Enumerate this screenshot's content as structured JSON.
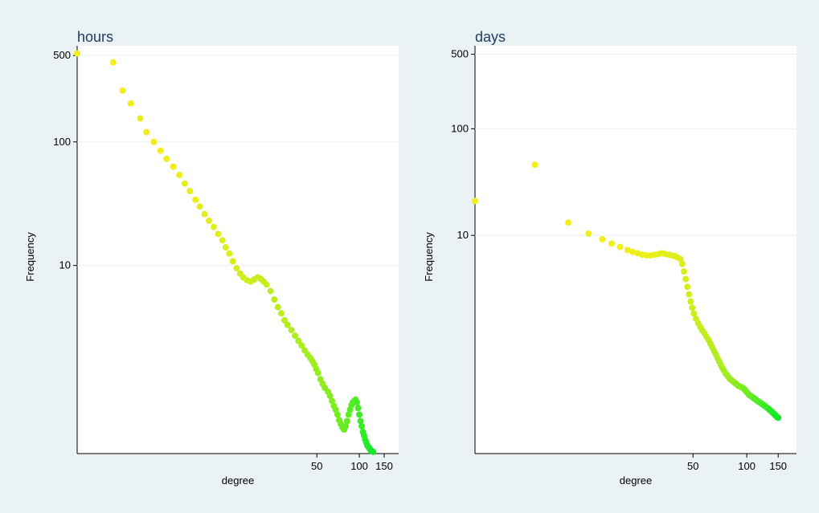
{
  "chart_data": [
    {
      "type": "scatter",
      "title": "hours",
      "xlabel": "degree",
      "ylabel": "Frequency",
      "x_scale": "log",
      "y_scale": "log",
      "xlim": [
        1,
        190
      ],
      "ylim": [
        0.3,
        600
      ],
      "x_ticks": [
        50,
        100,
        150
      ],
      "y_ticks": [
        10,
        100,
        500
      ],
      "grid": "horizontal",
      "points": [
        [
          1,
          520
        ],
        [
          1.8,
          440
        ],
        [
          2.1,
          260
        ],
        [
          2.4,
          205
        ],
        [
          2.8,
          155
        ],
        [
          3.1,
          120
        ],
        [
          3.5,
          100
        ],
        [
          3.9,
          85
        ],
        [
          4.3,
          73
        ],
        [
          4.8,
          63
        ],
        [
          5.3,
          54
        ],
        [
          5.8,
          46
        ],
        [
          6.3,
          40
        ],
        [
          6.9,
          34
        ],
        [
          7.4,
          30
        ],
        [
          8,
          26
        ],
        [
          8.6,
          23
        ],
        [
          9.3,
          20.5
        ],
        [
          10,
          18
        ],
        [
          10.7,
          16
        ],
        [
          11.3,
          14
        ],
        [
          12,
          12.5
        ],
        [
          12.7,
          10.8
        ],
        [
          13.5,
          9.5
        ],
        [
          14.3,
          8.6
        ],
        [
          15,
          8
        ],
        [
          16,
          7.6
        ],
        [
          17,
          7.4
        ],
        [
          18,
          7.7
        ],
        [
          19,
          8
        ],
        [
          20,
          7.8
        ],
        [
          21,
          7.4
        ],
        [
          22,
          7
        ],
        [
          23.5,
          6.2
        ],
        [
          25,
          5.3
        ],
        [
          26.5,
          4.6
        ],
        [
          28,
          4.1
        ],
        [
          29.5,
          3.6
        ],
        [
          31,
          3.3
        ],
        [
          33,
          3
        ],
        [
          35,
          2.7
        ],
        [
          37,
          2.45
        ],
        [
          39,
          2.25
        ],
        [
          41,
          2.05
        ],
        [
          43,
          1.9
        ],
        [
          45,
          1.78
        ],
        [
          46.5,
          1.68
        ],
        [
          48,
          1.58
        ],
        [
          49.5,
          1.45
        ],
        [
          51,
          1.35
        ],
        [
          53,
          1.2
        ],
        [
          55,
          1.1
        ],
        [
          57,
          1.02
        ],
        [
          60,
          0.95
        ],
        [
          62,
          0.88
        ],
        [
          64,
          0.8
        ],
        [
          66,
          0.73
        ],
        [
          68,
          0.68
        ],
        [
          70,
          0.62
        ],
        [
          72,
          0.56
        ],
        [
          74,
          0.52
        ],
        [
          76,
          0.49
        ],
        [
          78,
          0.47
        ],
        [
          80,
          0.5
        ],
        [
          82,
          0.55
        ],
        [
          84,
          0.62
        ],
        [
          86,
          0.68
        ],
        [
          88,
          0.74
        ],
        [
          90,
          0.78
        ],
        [
          92,
          0.8
        ],
        [
          94,
          0.82
        ],
        [
          96,
          0.78
        ],
        [
          98,
          0.7
        ],
        [
          100,
          0.62
        ],
        [
          102,
          0.55
        ],
        [
          104,
          0.5
        ],
        [
          106,
          0.45
        ],
        [
          108,
          0.42
        ],
        [
          110,
          0.39
        ],
        [
          112,
          0.37
        ],
        [
          114,
          0.35
        ],
        [
          116,
          0.34
        ],
        [
          118,
          0.33
        ],
        [
          120,
          0.32
        ],
        [
          122,
          0.315
        ],
        [
          125,
          0.31
        ]
      ]
    },
    {
      "type": "scatter",
      "title": "days",
      "xlabel": "degree",
      "ylabel": "Frequency",
      "x_scale": "log",
      "y_scale": "log",
      "xlim": [
        3,
        190
      ],
      "ylim": [
        0.09,
        600
      ],
      "x_ticks": [
        50,
        100,
        150
      ],
      "y_ticks": [
        10,
        100,
        500
      ],
      "grid": "horizontal",
      "points": [
        [
          3,
          21
        ],
        [
          6.5,
          46
        ],
        [
          10,
          13.2
        ],
        [
          13,
          10.4
        ],
        [
          15.5,
          9.2
        ],
        [
          17.5,
          8.4
        ],
        [
          19.5,
          7.8
        ],
        [
          21.5,
          7.3
        ],
        [
          23,
          7
        ],
        [
          24.5,
          6.8
        ],
        [
          26,
          6.6
        ],
        [
          27.5,
          6.5
        ],
        [
          29,
          6.5
        ],
        [
          30.5,
          6.6
        ],
        [
          32,
          6.7
        ],
        [
          33.5,
          6.8
        ],
        [
          35,
          6.7
        ],
        [
          36.5,
          6.6
        ],
        [
          38,
          6.5
        ],
        [
          39.5,
          6.4
        ],
        [
          41,
          6.2
        ],
        [
          42.5,
          6
        ],
        [
          43.5,
          5.4
        ],
        [
          44.5,
          4.6
        ],
        [
          45.5,
          3.9
        ],
        [
          46.5,
          3.3
        ],
        [
          47.5,
          2.8
        ],
        [
          48.5,
          2.4
        ],
        [
          49.5,
          2.1
        ],
        [
          50.5,
          1.85
        ],
        [
          52,
          1.65
        ],
        [
          53.5,
          1.5
        ],
        [
          55,
          1.38
        ],
        [
          56.5,
          1.28
        ],
        [
          58,
          1.2
        ],
        [
          59.5,
          1.12
        ],
        [
          61,
          1.05
        ],
        [
          62.5,
          0.97
        ],
        [
          64,
          0.9
        ],
        [
          65.5,
          0.83
        ],
        [
          67,
          0.77
        ],
        [
          68.5,
          0.71
        ],
        [
          70,
          0.66
        ],
        [
          71.5,
          0.61
        ],
        [
          73,
          0.57
        ],
        [
          74.5,
          0.54
        ],
        [
          76,
          0.51
        ],
        [
          77.5,
          0.49
        ],
        [
          79,
          0.47
        ],
        [
          80.5,
          0.45
        ],
        [
          82,
          0.44
        ],
        [
          83.5,
          0.43
        ],
        [
          85,
          0.42
        ],
        [
          86.5,
          0.41
        ],
        [
          88,
          0.4
        ],
        [
          89.5,
          0.39
        ],
        [
          91,
          0.385
        ],
        [
          92.5,
          0.38
        ],
        [
          94,
          0.375
        ],
        [
          95.5,
          0.37
        ],
        [
          97,
          0.36
        ],
        [
          98.5,
          0.35
        ],
        [
          100,
          0.34
        ],
        [
          101.5,
          0.33
        ],
        [
          103,
          0.32
        ],
        [
          104.5,
          0.315
        ],
        [
          106,
          0.31
        ],
        [
          107.5,
          0.305
        ],
        [
          109,
          0.3
        ],
        [
          110.5,
          0.295
        ],
        [
          112,
          0.29
        ],
        [
          113.5,
          0.285
        ],
        [
          115,
          0.28
        ],
        [
          117,
          0.275
        ],
        [
          119,
          0.27
        ],
        [
          121,
          0.265
        ],
        [
          123,
          0.26
        ],
        [
          125,
          0.255
        ],
        [
          127,
          0.25
        ],
        [
          129,
          0.245
        ],
        [
          131,
          0.24
        ],
        [
          133,
          0.235
        ],
        [
          135,
          0.23
        ],
        [
          137,
          0.225
        ],
        [
          139,
          0.22
        ],
        [
          141,
          0.215
        ],
        [
          143,
          0.21
        ],
        [
          145,
          0.205
        ],
        [
          147,
          0.2
        ],
        [
          150,
          0.195
        ]
      ]
    }
  ],
  "colors": {
    "background": "#eaf2f3",
    "plot_background": "#ffffff",
    "gridline": "#eaf2f3",
    "low_degree_marker": "#f2ee1a",
    "high_degree_marker": "#11ea2a"
  }
}
